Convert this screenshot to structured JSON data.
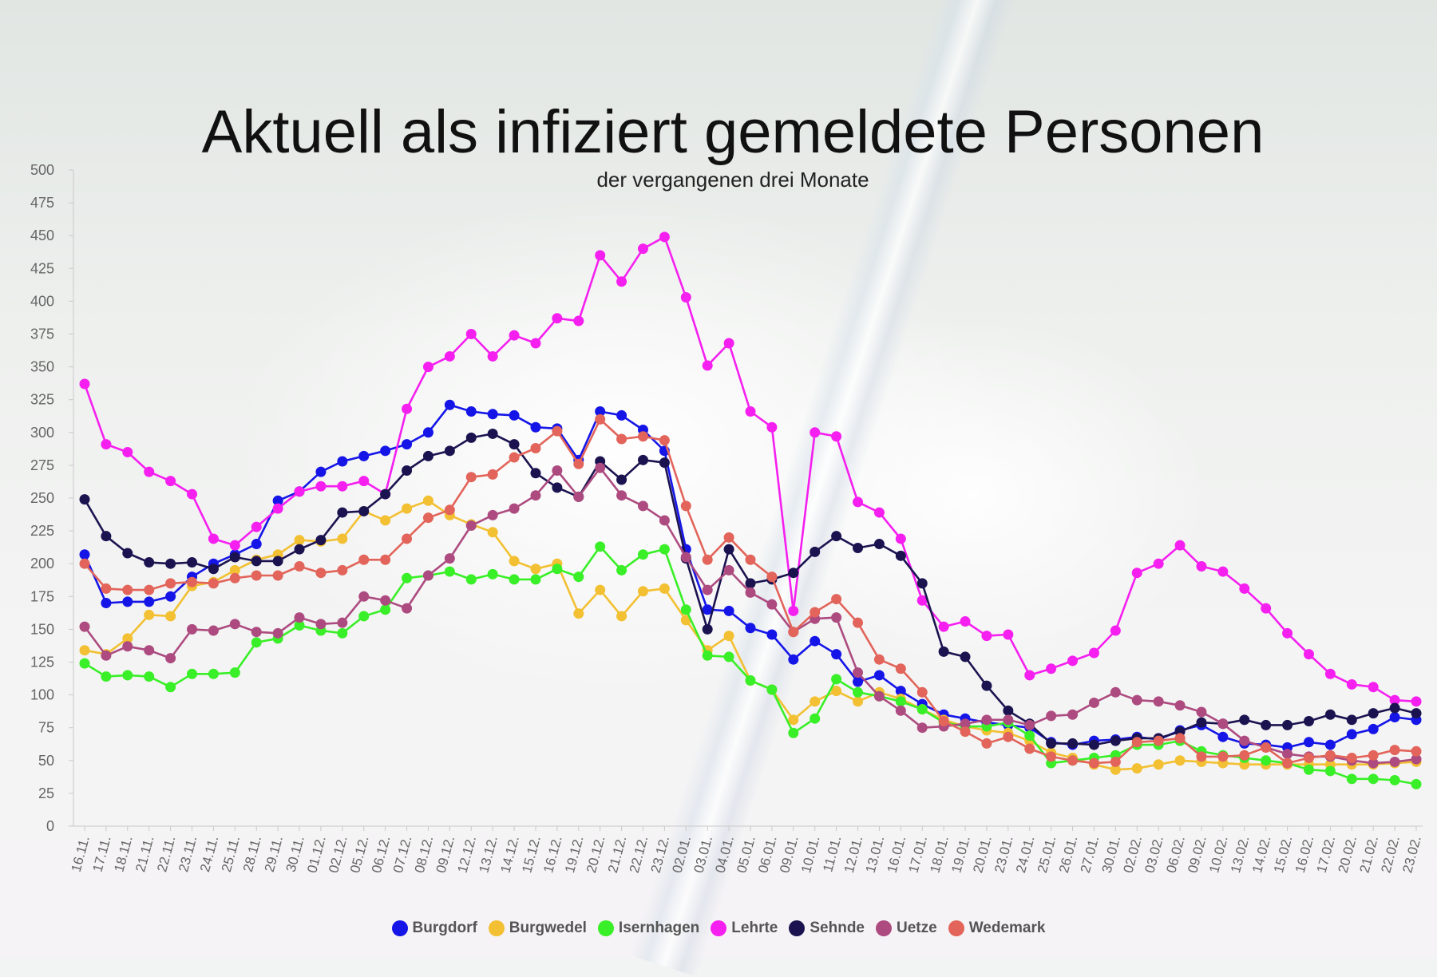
{
  "chart_data": {
    "type": "line",
    "title": "Aktuell als infiziert gemeldete Personen",
    "subtitle": "der vergangenen drei Monate",
    "ylim": [
      0,
      500
    ],
    "yticks": [
      0,
      25,
      50,
      75,
      100,
      125,
      150,
      175,
      200,
      225,
      250,
      275,
      300,
      325,
      350,
      375,
      400,
      425,
      450,
      475,
      500
    ],
    "grid": false,
    "legend": "bottom-center",
    "categories": [
      "16.11.",
      "17.11.",
      "18.11.",
      "21.11.",
      "22.11.",
      "23.11.",
      "24.11.",
      "25.11.",
      "28.11.",
      "29.11.",
      "30.11.",
      "01.12.",
      "02.12.",
      "05.12.",
      "06.12.",
      "07.12.",
      "08.12.",
      "09.12.",
      "12.12.",
      "13.12.",
      "14.12.",
      "15.12.",
      "16.12.",
      "19.12.",
      "20.12.",
      "21.12.",
      "22.12.",
      "23.12.",
      "02.01.",
      "03.01.",
      "04.01.",
      "05.01.",
      "06.01.",
      "09.01.",
      "10.01.",
      "11.01.",
      "12.01.",
      "13.01.",
      "16.01.",
      "17.01.",
      "18.01.",
      "19.01.",
      "20.01.",
      "23.01.",
      "24.01.",
      "25.01.",
      "26.01.",
      "27.01.",
      "30.01.",
      "02.02.",
      "03.02.",
      "06.02.",
      "09.02.",
      "10.02.",
      "13.02.",
      "14.02.",
      "15.02.",
      "16.02.",
      "17.02.",
      "20.02.",
      "21.02.",
      "22.02.",
      "23.02."
    ],
    "series": [
      {
        "name": "Burgdorf",
        "color": "#1515e8",
        "values": [
          207,
          170,
          171,
          171,
          175,
          190,
          200,
          207,
          215,
          248,
          255,
          270,
          278,
          282,
          286,
          291,
          300,
          321,
          316,
          314,
          313,
          304,
          303,
          279,
          316,
          313,
          302,
          286,
          211,
          165,
          164,
          151,
          146,
          127,
          141,
          131,
          110,
          115,
          103,
          93,
          85,
          82,
          79,
          77,
          75,
          64,
          62,
          65,
          66,
          68,
          66,
          73,
          77,
          68,
          63,
          62,
          60,
          64,
          62,
          70,
          74,
          83,
          81
        ]
      },
      {
        "name": "Burgwedel",
        "color": "#f2c032",
        "values": [
          134,
          131,
          143,
          161,
          160,
          183,
          186,
          195,
          203,
          207,
          218,
          217,
          219,
          240,
          233,
          242,
          248,
          237,
          230,
          224,
          202,
          196,
          200,
          162,
          180,
          160,
          179,
          181,
          157,
          134,
          145,
          111,
          104,
          81,
          95,
          103,
          95,
          102,
          97,
          89,
          81,
          76,
          73,
          71,
          65,
          56,
          52,
          47,
          43,
          44,
          47,
          50,
          49,
          48,
          47,
          47,
          47,
          47,
          47,
          47,
          47,
          48,
          49
        ]
      },
      {
        "name": "Isernhagen",
        "color": "#39ef27",
        "values": [
          124,
          114,
          115,
          114,
          106,
          116,
          116,
          117,
          140,
          143,
          153,
          149,
          147,
          160,
          165,
          189,
          191,
          194,
          188,
          192,
          188,
          188,
          196,
          190,
          213,
          195,
          207,
          211,
          165,
          130,
          129,
          111,
          104,
          71,
          82,
          112,
          102,
          99,
          95,
          89,
          79,
          76,
          76,
          79,
          69,
          48,
          50,
          52,
          54,
          62,
          62,
          65,
          57,
          54,
          52,
          50,
          48,
          43,
          42,
          36,
          36,
          35,
          32
        ]
      },
      {
        "name": "Lehrte",
        "color": "#f51ff0",
        "values": [
          337,
          291,
          285,
          270,
          263,
          253,
          219,
          214,
          228,
          242,
          255,
          259,
          259,
          263,
          253,
          318,
          350,
          358,
          375,
          358,
          374,
          368,
          387,
          385,
          435,
          415,
          440,
          449,
          403,
          351,
          368,
          316,
          304,
          164,
          300,
          297,
          247,
          239,
          219,
          172,
          152,
          156,
          145,
          146,
          115,
          120,
          126,
          132,
          149,
          193,
          200,
          214,
          198,
          194,
          181,
          166,
          147,
          131,
          116,
          108,
          106,
          96,
          95
        ]
      },
      {
        "name": "Sehnde",
        "color": "#1b1350",
        "values": [
          249,
          221,
          208,
          201,
          200,
          201,
          196,
          205,
          202,
          202,
          211,
          218,
          239,
          240,
          253,
          271,
          282,
          286,
          296,
          299,
          291,
          269,
          258,
          251,
          278,
          264,
          279,
          277,
          204,
          150,
          211,
          185,
          188,
          193,
          209,
          221,
          212,
          215,
          206,
          185,
          133,
          129,
          107,
          88,
          78,
          63,
          63,
          62,
          65,
          67,
          67,
          72,
          79,
          78,
          81,
          77,
          77,
          80,
          85,
          81,
          86,
          90,
          86
        ]
      },
      {
        "name": "Uetze",
        "color": "#ad4b80",
        "values": [
          152,
          130,
          137,
          134,
          128,
          150,
          149,
          154,
          148,
          147,
          159,
          154,
          155,
          175,
          172,
          166,
          191,
          204,
          229,
          237,
          242,
          252,
          271,
          251,
          273,
          252,
          244,
          233,
          205,
          180,
          195,
          178,
          169,
          148,
          158,
          159,
          117,
          99,
          88,
          75,
          76,
          78,
          81,
          81,
          77,
          84,
          85,
          94,
          102,
          96,
          95,
          92,
          87,
          78,
          65,
          60,
          55,
          53,
          53,
          50,
          48,
          49,
          51
        ]
      },
      {
        "name": "Wedemark",
        "color": "#e2645a",
        "values": [
          200,
          181,
          180,
          180,
          185,
          186,
          185,
          189,
          191,
          191,
          198,
          193,
          195,
          203,
          203,
          219,
          235,
          241,
          266,
          268,
          281,
          288,
          301,
          276,
          310,
          295,
          297,
          294,
          244,
          203,
          220,
          203,
          190,
          148,
          163,
          173,
          155,
          127,
          120,
          102,
          80,
          72,
          63,
          68,
          59,
          53,
          50,
          48,
          49,
          64,
          65,
          67,
          53,
          53,
          54,
          60,
          48,
          52,
          54,
          52,
          54,
          58,
          57
        ]
      }
    ]
  }
}
